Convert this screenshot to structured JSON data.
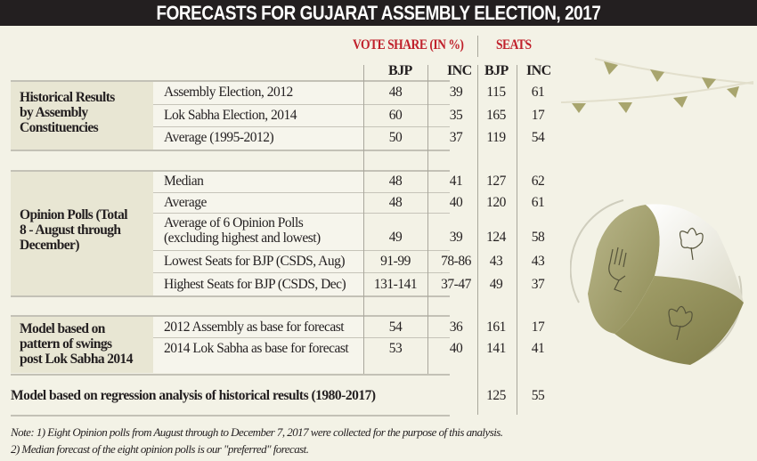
{
  "title": "FORECASTS FOR GUJARAT ASSEMBLY ELECTION, 2017",
  "chart_data": {
    "type": "table",
    "title": "FORECASTS FOR GUJARAT ASSEMBLY ELECTION, 2017",
    "column_groups": [
      {
        "label": "VOTE SHARE (IN %)",
        "columns": [
          "BJP",
          "INC"
        ]
      },
      {
        "label": "SEATS",
        "columns": [
          "BJP",
          "INC"
        ]
      }
    ],
    "groups": [
      {
        "label": "Historical Results by Assembly Constituencies",
        "rows": [
          {
            "label": "Assembly Election, 2012",
            "vote_bjp": "48",
            "vote_inc": "39",
            "seats_bjp": "115",
            "seats_inc": "61"
          },
          {
            "label": "Lok Sabha Election, 2014",
            "vote_bjp": "60",
            "vote_inc": "35",
            "seats_bjp": "165",
            "seats_inc": "17"
          },
          {
            "label": "Average (1995-2012)",
            "vote_bjp": "50",
            "vote_inc": "37",
            "seats_bjp": "119",
            "seats_inc": "54"
          }
        ]
      },
      {
        "label": "Opinion Polls (Total 8 - August through December)",
        "rows": [
          {
            "label": "Median",
            "vote_bjp": "48",
            "vote_inc": "41",
            "seats_bjp": "127",
            "seats_inc": "62"
          },
          {
            "label": "Average",
            "vote_bjp": "48",
            "vote_inc": "40",
            "seats_bjp": "120",
            "seats_inc": "61"
          },
          {
            "label": "Average of 6 Opinion Polls (excluding highest and lowest)",
            "label_line1": "Average of 6 Opinion Polls",
            "label_line2": "(excluding highest  and lowest)",
            "vote_bjp": "49",
            "vote_inc": "39",
            "seats_bjp": "124",
            "seats_inc": "58"
          },
          {
            "label": "Lowest Seats for BJP (CSDS, Aug)",
            "vote_bjp": "91-99",
            "vote_inc": "78-86",
            "seats_bjp": "43",
            "seats_inc": "43"
          },
          {
            "label": "Highest Seats for BJP (CSDS, Dec)",
            "vote_bjp": "131-141",
            "vote_inc": "37-47",
            "seats_bjp": "49",
            "seats_inc": "37"
          }
        ]
      },
      {
        "label": "Model based on pattern of swings post Lok Sabha 2014",
        "rows": [
          {
            "label": "2012 Assembly as base for forecast",
            "vote_bjp": "54",
            "vote_inc": "36",
            "seats_bjp": "161",
            "seats_inc": "17"
          },
          {
            "label": "2014 Lok Sabha as base for forecast",
            "vote_bjp": "53",
            "vote_inc": "40",
            "seats_bjp": "141",
            "seats_inc": "41"
          }
        ]
      }
    ],
    "summary_row": {
      "label": "Model based on regression analysis of historical results (1980-2017)",
      "seats_bjp": "125",
      "seats_inc": "55"
    },
    "notes": [
      "Note: 1) Eight Opinion polls from August through to December 7, 2017 were collected for the purpose of this analysis.",
      "2) Median forecast of the eight opinion polls is our \"preferred\" forecast."
    ]
  },
  "labels": {
    "group1": [
      "Historical Results",
      "by Assembly",
      "Constituencies"
    ],
    "group2": [
      "Opinion Polls (Total",
      "8 - August through",
      "December)"
    ],
    "group3": [
      "Model based on",
      "pattern of swings",
      "post Lok Sabha 2014"
    ]
  },
  "colors": {
    "header_red": "#c0202b",
    "title_bg": "#231f20",
    "page_bg": "#f3f2e6",
    "group_bg": "#e8e6d3",
    "accent_olive": "#a8a56e"
  }
}
